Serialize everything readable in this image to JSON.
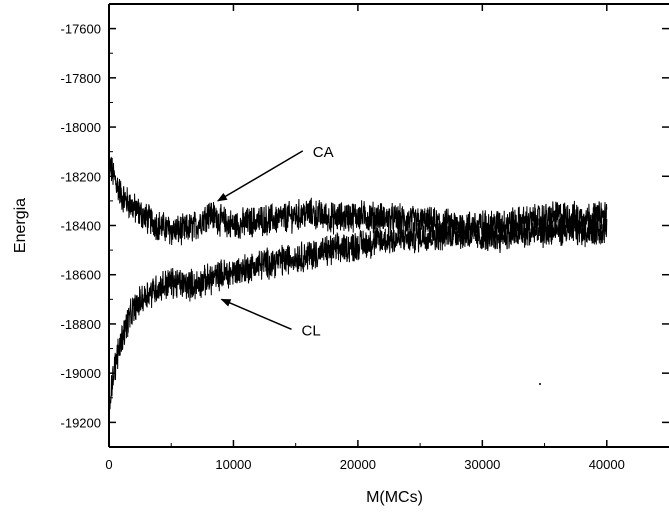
{
  "chart_data": {
    "type": "line",
    "title": "",
    "xlabel": "M(MCs)",
    "ylabel": "Energia",
    "xlim": [
      0,
      45000
    ],
    "ylim": [
      -19300,
      -17500
    ],
    "grid": false,
    "legend": "none",
    "x_ticks": [
      0,
      10000,
      20000,
      30000,
      40000
    ],
    "y_ticks": [
      -17600,
      -17800,
      -18000,
      -18200,
      -18400,
      -18600,
      -18800,
      -19000,
      -19200
    ],
    "x_tick_labels": [
      "0",
      "10000",
      "20000",
      "30000",
      "40000"
    ],
    "y_tick_labels": [
      "-17600",
      "-17800",
      "-18000",
      "-18200",
      "-18400",
      "-18600",
      "-18800",
      "-19000",
      "-19200"
    ],
    "series": [
      {
        "name": "CA",
        "color": "#000000",
        "x": [
          0,
          1000,
          2000,
          3000,
          4000,
          5000,
          6000,
          7000,
          8000,
          9000,
          10000,
          12000,
          14000,
          16000,
          18000,
          20000,
          22000,
          24000,
          26000,
          28000,
          30000,
          32000,
          34000,
          36000,
          38000,
          40000
        ],
        "y": [
          -18150,
          -18280,
          -18330,
          -18370,
          -18400,
          -18420,
          -18420,
          -18400,
          -18350,
          -18380,
          -18400,
          -18380,
          -18370,
          -18350,
          -18370,
          -18360,
          -18370,
          -18380,
          -18390,
          -18400,
          -18400,
          -18390,
          -18380,
          -18360,
          -18370,
          -18360
        ]
      },
      {
        "name": "CL",
        "color": "#000000",
        "x": [
          0,
          300,
          700,
          1000,
          1500,
          2000,
          3000,
          4000,
          5000,
          6000,
          7000,
          8000,
          9000,
          10000,
          12000,
          14000,
          16000,
          18000,
          20000,
          22000,
          24000,
          26000,
          28000,
          30000,
          32000,
          34000,
          36000,
          38000,
          40000
        ],
        "y": [
          -19120,
          -19020,
          -18920,
          -18860,
          -18790,
          -18740,
          -18680,
          -18650,
          -18630,
          -18640,
          -18640,
          -18620,
          -18600,
          -18590,
          -18560,
          -18540,
          -18520,
          -18500,
          -18480,
          -18460,
          -18450,
          -18440,
          -18430,
          -18450,
          -18440,
          -18430,
          -18420,
          -18420,
          -18420
        ]
      }
    ],
    "annotations": [
      {
        "text": "CA",
        "target_x": 8500,
        "target_y": -18300
      },
      {
        "text": "CL",
        "target_x": 8800,
        "target_y": -18700
      }
    ]
  }
}
